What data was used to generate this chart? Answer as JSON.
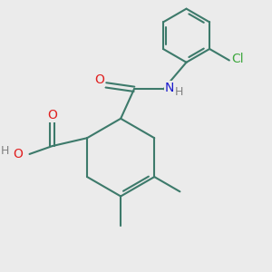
{
  "background_color": "#ebebeb",
  "bond_color": "#3d7a6b",
  "bond_width": 1.5,
  "atom_colors": {
    "O": "#e02020",
    "N": "#1a1acd",
    "Cl": "#40a840",
    "H": "#808080",
    "C": "#3d7a6b"
  },
  "figsize": [
    3.0,
    3.0
  ],
  "dpi": 100
}
